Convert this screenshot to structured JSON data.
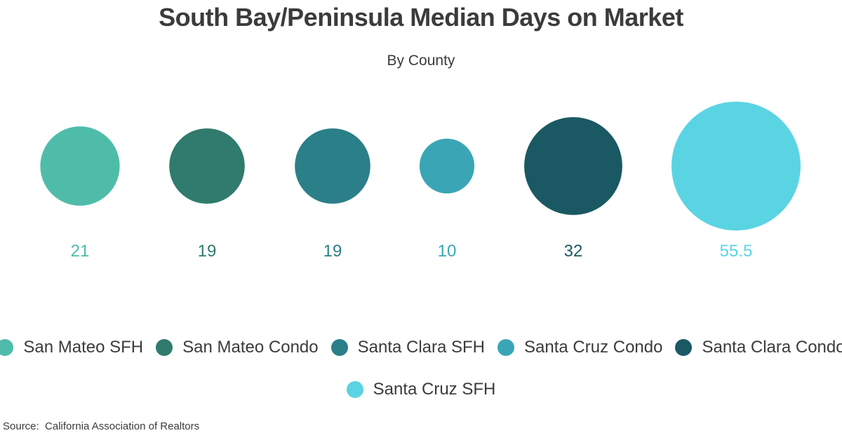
{
  "chart_data": {
    "type": "bubble",
    "title": "South Bay/Peninsula Median Days on Market",
    "subtitle": "By County",
    "categories": [
      "San Mateo SFH",
      "San Mateo Condo",
      "Santa Clara SFH",
      "Santa Cruz Condo",
      "Santa Clara Condo",
      "Santa Cruz SFH"
    ],
    "values": [
      21,
      19,
      19,
      10,
      32,
      55.5
    ],
    "value_labels": [
      "21",
      "19",
      "19",
      "10",
      "32",
      "55.5"
    ],
    "colors": [
      "#4fbcaa",
      "#307b6e",
      "#2b7f88",
      "#3aa6b5",
      "#1a5963",
      "#5ad4e3"
    ],
    "legend": {
      "position": "bottom",
      "entries": [
        "San Mateo SFH",
        "San Mateo Condo",
        "Santa Clara SFH",
        "Santa Cruz Condo",
        "Santa Clara Condo",
        "Santa Cruz SFH"
      ]
    },
    "grid": false
  },
  "source": "Source:  California Association of Realtors"
}
